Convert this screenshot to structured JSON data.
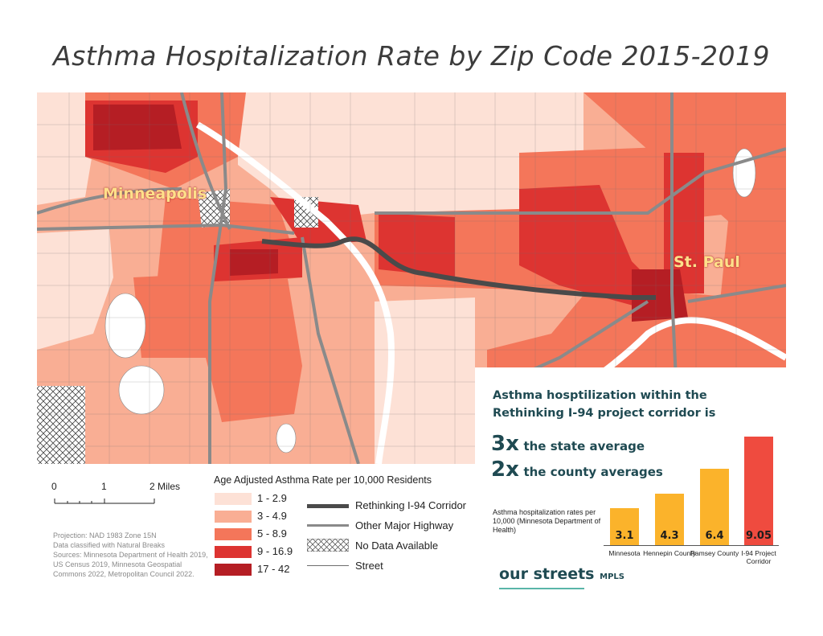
{
  "title": "Asthma Hospitalization Rate by Zip Code 2015-2019",
  "map": {
    "cities": [
      "Minneapolis",
      "St. Paul"
    ],
    "colors": {
      "c1": "#fde1d6",
      "c2": "#f9ae94",
      "c3": "#f4765a",
      "c4": "#dd3431",
      "c5": "#b51e24",
      "corridor": "#4a4a4a",
      "highway": "#8a8a8a",
      "street": "#6e6e6e"
    }
  },
  "scale_bar": {
    "labels": [
      "0",
      "1",
      "2 Miles"
    ]
  },
  "legend": {
    "title": "Age Adjusted Asthma Rate per 10,000 Residents",
    "classes": [
      {
        "label": "1 - 2.9",
        "color": "#fde1d6"
      },
      {
        "label": "3 - 4.9",
        "color": "#f9ae94"
      },
      {
        "label": "5 - 8.9",
        "color": "#f4765a"
      },
      {
        "label": "9 - 16.9",
        "color": "#dd3431"
      },
      {
        "label": "17 - 42",
        "color": "#b51e24"
      }
    ],
    "lines": [
      {
        "label": "Rethinking I-94 Corridor"
      },
      {
        "label": "Other Major Highway"
      },
      {
        "label": "No Data Available"
      },
      {
        "label": "Street"
      }
    ]
  },
  "source_note": "Projection: NAD 1983 Zone 15N\nData classified with Natural Breaks\nSources: Minnesota Department of Health 2019, US Census 2019, Minnesota Geospatial Commons 2022, Metropolitan Council 2022.",
  "panel": {
    "heading": "Asthma hosptilization within the Rethinking I-94 project corridor is",
    "mult1_big": "3x",
    "mult1_small": "the state average",
    "mult2_big": "2x",
    "mult2_small": "the county averages",
    "y_label": "Asthma hospitalization rates per 10,000 (Minnesota Department of Health)",
    "logo_main": "our streets",
    "logo_sub": "MPLS"
  },
  "chart_data": {
    "type": "bar",
    "categories": [
      "Minnesota",
      "Hennepin County",
      "Ramsey County",
      "I-94 Project Corridor"
    ],
    "values": [
      3.1,
      4.3,
      6.4,
      9.05
    ],
    "value_labels": [
      "3.1",
      "4.3",
      "6.4",
      "9.05"
    ],
    "colors": [
      "#fbb32b",
      "#fbb32b",
      "#fbb32b",
      "#ef4b3f"
    ],
    "ylabel": "Asthma hospitalization rates per 10,000 (Minnesota Department of Health)"
  }
}
